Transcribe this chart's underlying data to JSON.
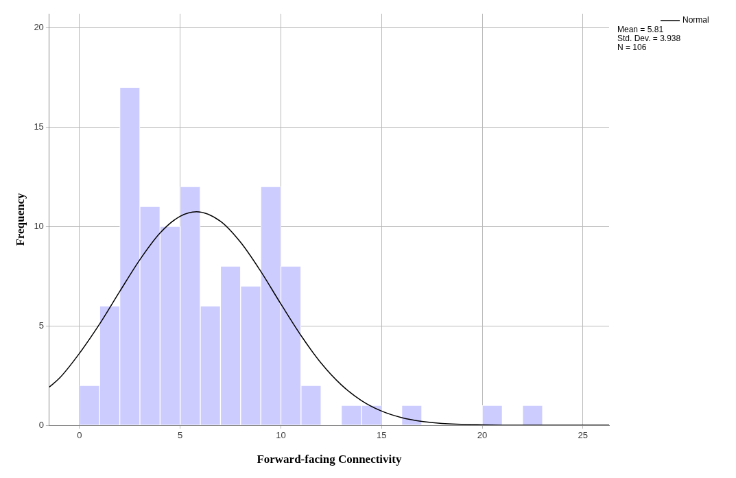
{
  "chart_data": {
    "type": "histogram",
    "xlabel": "Forward-facing Connectivity",
    "ylabel": "Frequency",
    "bins": [
      0,
      1,
      2,
      3,
      4,
      5,
      6,
      7,
      8,
      9,
      10,
      11,
      12,
      13,
      14,
      15,
      16,
      17,
      18,
      19,
      20,
      21,
      22,
      23
    ],
    "values": [
      2,
      6,
      17,
      11,
      10,
      12,
      6,
      8,
      7,
      12,
      8,
      2,
      0,
      1,
      1,
      0,
      1,
      0,
      0,
      0,
      1,
      0,
      1
    ],
    "color": "#ccccff",
    "series": [
      {
        "name": "Normal",
        "type": "line",
        "color": "#000000",
        "x": [
          -1.5,
          -1,
          0,
          1,
          2,
          3,
          4,
          5,
          5.81,
          7,
          8,
          9,
          10,
          11,
          12,
          13,
          14,
          15,
          16,
          17,
          18,
          20,
          22,
          26.3
        ],
        "values": [
          1.92,
          2.36,
          3.62,
          5.09,
          6.73,
          8.33,
          9.67,
          10.51,
          10.74,
          10.26,
          9.2,
          7.74,
          6.1,
          4.51,
          3.12,
          2.03,
          1.24,
          0.71,
          0.38,
          0.19,
          0.09,
          0.02,
          0,
          0
        ]
      }
    ],
    "marker": "none",
    "xlim": [
      -1.5,
      26.3
    ],
    "xticks": [
      0,
      5,
      10,
      15,
      20,
      25
    ],
    "ylim": [
      0,
      20.7
    ],
    "yticks": [
      0,
      5,
      10,
      15,
      20
    ],
    "grid": true,
    "legend": "top right",
    "annotations": [
      "Mean = 5.81",
      "Std. Dev. = 3.938",
      "N = 106"
    ]
  }
}
